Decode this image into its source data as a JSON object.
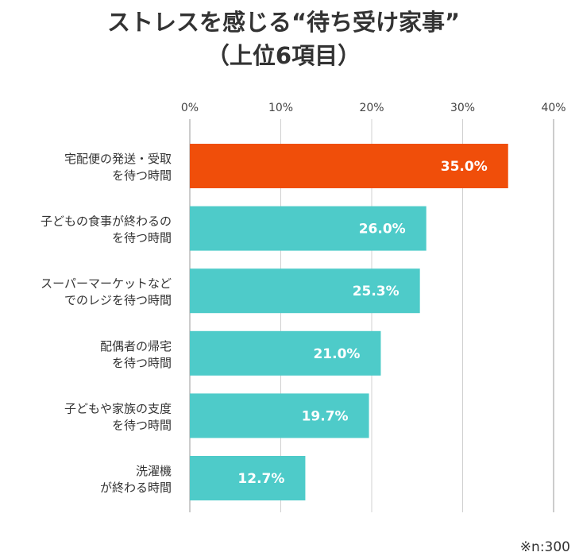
{
  "chart_data": {
    "type": "bar",
    "orientation": "horizontal",
    "title": [
      "ストレスを感じる“待ち受け家事”",
      "（上位6項目）"
    ],
    "categories": [
      [
        "宅配便の発送・受取",
        "を待つ時間"
      ],
      [
        "子どもの食事が終わるの",
        "を待つ時間"
      ],
      [
        "スーパーマーケットなど",
        "でのレジを待つ時間"
      ],
      [
        "配偶者の帰宅",
        "を待つ時間"
      ],
      [
        "子どもや家族の支度",
        "を待つ時間"
      ],
      [
        "洗濯機",
        "が終わる時間"
      ]
    ],
    "values": [
      35.0,
      26.0,
      25.3,
      21.0,
      19.7,
      12.7
    ],
    "value_labels": [
      "35.0%",
      "26.0%",
      "25.3%",
      "21.0%",
      "19.7%",
      "12.7%"
    ],
    "xlim": [
      0,
      40
    ],
    "xticks": [
      "0%",
      "10%",
      "20%",
      "30%",
      "40%"
    ],
    "grid": true,
    "colors": {
      "highlight": "#f04e0a",
      "bar": "#4ecbc9",
      "grid": "#d0d0d0",
      "axis": "#999999"
    },
    "note": "※n:300"
  }
}
